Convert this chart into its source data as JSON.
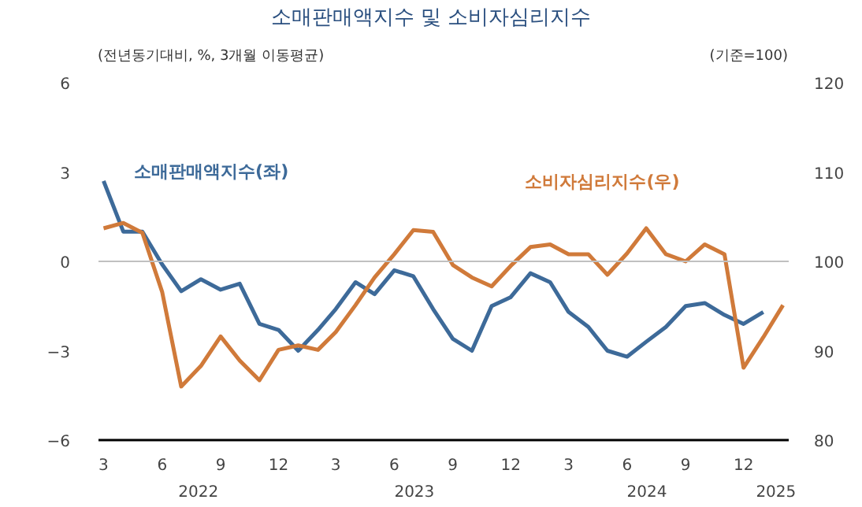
{
  "chart_data": {
    "type": "line",
    "title": "소매판매액지수 및 소비자심리지수",
    "ylabel": "(전년동기대비, %, 3개월 이동평균)",
    "y2label": "(기준=100)",
    "ylim": [
      -6,
      6
    ],
    "yticks": [
      -6,
      -3,
      0,
      3,
      6
    ],
    "y2lim": [
      80,
      120
    ],
    "y2ticks": [
      80,
      90,
      100,
      110,
      120
    ],
    "xlim": [
      "2022-02-21",
      "2025-02-10"
    ],
    "xticks": [
      {
        "value": "2022-03",
        "label": "3"
      },
      {
        "value": "2022-06",
        "label": "6"
      },
      {
        "value": "2022-09",
        "label": "9"
      },
      {
        "value": "2022-12",
        "label": "12"
      },
      {
        "value": "2023-03",
        "label": "3"
      },
      {
        "value": "2023-06",
        "label": "6"
      },
      {
        "value": "2023-09",
        "label": "9"
      },
      {
        "value": "2023-12",
        "label": "12"
      },
      {
        "value": "2024-03",
        "label": "3"
      },
      {
        "value": "2024-06",
        "label": "6"
      },
      {
        "value": "2024-09",
        "label": "9"
      },
      {
        "value": "2024-12",
        "label": "12"
      }
    ],
    "annotations": [
      "2022",
      "2023",
      "2024",
      "2025"
    ],
    "x": [
      "2022-03",
      "2022-04",
      "2022-05",
      "2022-06",
      "2022-07",
      "2022-08",
      "2022-09",
      "2022-10",
      "2022-11",
      "2022-12",
      "2023-01",
      "2023-02",
      "2023-03",
      "2023-04",
      "2023-05",
      "2023-06",
      "2023-07",
      "2023-08",
      "2023-09",
      "2023-10",
      "2023-11",
      "2023-12",
      "2024-01",
      "2024-02",
      "2024-03",
      "2024-04",
      "2024-05",
      "2024-06",
      "2024-07",
      "2024-08",
      "2024-09",
      "2024-10",
      "2024-11",
      "2024-12",
      "2025-01",
      "2025-02"
    ],
    "ref_lines": [
      {
        "axis": "y",
        "value": 0,
        "color": "#c0c0c0"
      }
    ],
    "legend": false,
    "grid": false,
    "series": [
      {
        "name": "소매판매액지수(좌)",
        "color": "#3d6a99",
        "values": [
          2.7,
          1.0,
          1.0,
          -0.1,
          -1.0,
          -0.6,
          -0.95,
          -0.75,
          -2.1,
          -2.3,
          -3.0,
          -2.3,
          -1.6,
          -0.7,
          -1.1,
          -0.3,
          -0.5,
          -1.6,
          -2.6,
          -3.0,
          -1.5,
          -1.2,
          -0.4,
          -0.7,
          -1.7,
          -2.2,
          -3.0,
          -3.2,
          -2.7,
          -2.2,
          -1.5,
          -1.4,
          -1.8,
          -2.1,
          -1.7,
          null
        ]
      },
      {
        "name": "소비자심리지수(우)",
        "color": "#d07a3a",
        "axis": "y2",
        "values": [
          103.7,
          104.3,
          103.2,
          96.6,
          86.0,
          88.3,
          91.6,
          88.9,
          86.7,
          90.1,
          90.6,
          90.1,
          92.1,
          95.1,
          98.2,
          100.8,
          103.5,
          103.3,
          99.6,
          98.2,
          97.2,
          99.5,
          101.6,
          101.9,
          100.8,
          100.8,
          98.5,
          100.9,
          103.7,
          100.8,
          100.0,
          101.9,
          100.8,
          88.1,
          91.5,
          95.1
        ]
      }
    ]
  }
}
